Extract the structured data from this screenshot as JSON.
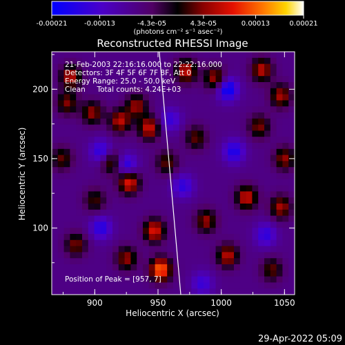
{
  "chart_data": {
    "type": "heatmap",
    "title": "Reconstructed RHESSI Image",
    "xlabel": "Heliocentric X (arcsec)",
    "ylabel": "Heliocentric Y (arcsec)",
    "xlim": [
      866,
      1058
    ],
    "ylim": [
      52,
      227
    ],
    "x_ticks": [
      900,
      950,
      1000,
      1050
    ],
    "y_ticks": [
      100,
      150,
      200
    ],
    "colorbar": {
      "range": [
        -0.00021,
        0.00021
      ],
      "tick_values": [
        -0.00021,
        -0.00013,
        -4.3e-05,
        4.3e-05,
        0.00013,
        0.00021
      ],
      "tick_labels": [
        "-0.00021",
        "-0.00013",
        "-4.3e-05",
        "4.3e-05",
        "0.00013",
        "0.00021"
      ],
      "unit_label": "(photons cm⁻² s⁻¹ asec⁻²)"
    },
    "annotations": [
      "21-Feb-2003 22:16:16.000 to 22:22:16.000",
      "Detectors: 3F 4F 5F 6F 7F 8F, Att 0",
      "Energy Range: 25.0 - 50.0 keV",
      "Clean     Total counts: 4.24E+03"
    ],
    "peak_label": "Position of Peak = [957, 7]",
    "limb_line": {
      "x": [
        951,
        968
      ],
      "y": [
        227,
        52
      ]
    },
    "hotspots": [
      {
        "x": 881,
        "y": 209,
        "v": 0.00014
      },
      {
        "x": 878,
        "y": 190,
        "v": 0.00011
      },
      {
        "x": 898,
        "y": 183,
        "v": 0.00012
      },
      {
        "x": 920,
        "y": 177,
        "v": 0.00014
      },
      {
        "x": 933,
        "y": 188,
        "v": 0.00012
      },
      {
        "x": 943,
        "y": 172,
        "v": 0.00015
      },
      {
        "x": 927,
        "y": 133,
        "v": 0.00017
      },
      {
        "x": 913,
        "y": 147,
        "v": 0.00011
      },
      {
        "x": 957,
        "y": 147,
        "v": 0.0001
      },
      {
        "x": 952,
        "y": 70,
        "v": 0.00021
      },
      {
        "x": 947,
        "y": 98,
        "v": 0.00016
      },
      {
        "x": 925,
        "y": 78,
        "v": 0.00012
      },
      {
        "x": 885,
        "y": 88,
        "v": 0.00011
      },
      {
        "x": 874,
        "y": 150,
        "v": 0.0001
      },
      {
        "x": 972,
        "y": 213,
        "v": 0.00015
      },
      {
        "x": 995,
        "y": 208,
        "v": 0.00013
      },
      {
        "x": 1032,
        "y": 214,
        "v": 0.00014
      },
      {
        "x": 1047,
        "y": 195,
        "v": 0.00013
      },
      {
        "x": 1030,
        "y": 173,
        "v": 0.00011
      },
      {
        "x": 1050,
        "y": 150,
        "v": 0.00012
      },
      {
        "x": 1020,
        "y": 122,
        "v": 0.00015
      },
      {
        "x": 1047,
        "y": 115,
        "v": 0.00013
      },
      {
        "x": 1005,
        "y": 80,
        "v": 0.00014
      },
      {
        "x": 988,
        "y": 105,
        "v": 0.00012
      },
      {
        "x": 1040,
        "y": 70,
        "v": 0.0001
      },
      {
        "x": 980,
        "y": 165,
        "v": 0.0001
      },
      {
        "x": 900,
        "y": 120,
        "v": 9e-05
      }
    ],
    "coldspots": [
      {
        "x": 925,
        "y": 145,
        "v": -0.00013
      },
      {
        "x": 905,
        "y": 155,
        "v": -0.00012
      },
      {
        "x": 1005,
        "y": 200,
        "v": -0.00016
      },
      {
        "x": 1010,
        "y": 155,
        "v": -0.00013
      },
      {
        "x": 970,
        "y": 130,
        "v": -0.00011
      },
      {
        "x": 905,
        "y": 100,
        "v": -0.00012
      },
      {
        "x": 960,
        "y": 178,
        "v": -0.0001
      },
      {
        "x": 1035,
        "y": 95,
        "v": -0.00011
      },
      {
        "x": 985,
        "y": 60,
        "v": -0.0001
      }
    ]
  },
  "footer": {
    "timestamp": "29-Apr-2022 05:09"
  }
}
